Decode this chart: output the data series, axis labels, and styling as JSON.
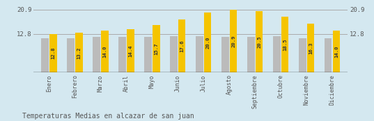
{
  "months": [
    "Enero",
    "Febrero",
    "Marzo",
    "Abril",
    "Mayo",
    "Junio",
    "Julio",
    "Agosto",
    "Septiembre",
    "Octubre",
    "Noviembre",
    "Diciembre"
  ],
  "values": [
    12.8,
    13.2,
    14.0,
    14.4,
    15.7,
    17.6,
    20.0,
    20.9,
    20.5,
    18.5,
    16.3,
    14.0
  ],
  "gray_values": [
    11.5,
    11.5,
    11.8,
    11.8,
    11.8,
    12.0,
    12.0,
    11.8,
    11.8,
    12.2,
    11.5,
    11.5
  ],
  "bar_color_yellow": "#F5C400",
  "bar_color_gray": "#BBBBBB",
  "background_color": "#D4E8F0",
  "grid_color": "#AAAAAA",
  "text_color": "#555555",
  "title": "Temperaturas Medias en alcazar de san juan",
  "ylim_max": 22.5,
  "yticks": [
    12.8,
    20.9
  ],
  "value_label_fontsize": 5.2,
  "month_fontsize": 5.8,
  "title_fontsize": 7.0,
  "bar_width": 0.28,
  "bar_gap": 0.04
}
